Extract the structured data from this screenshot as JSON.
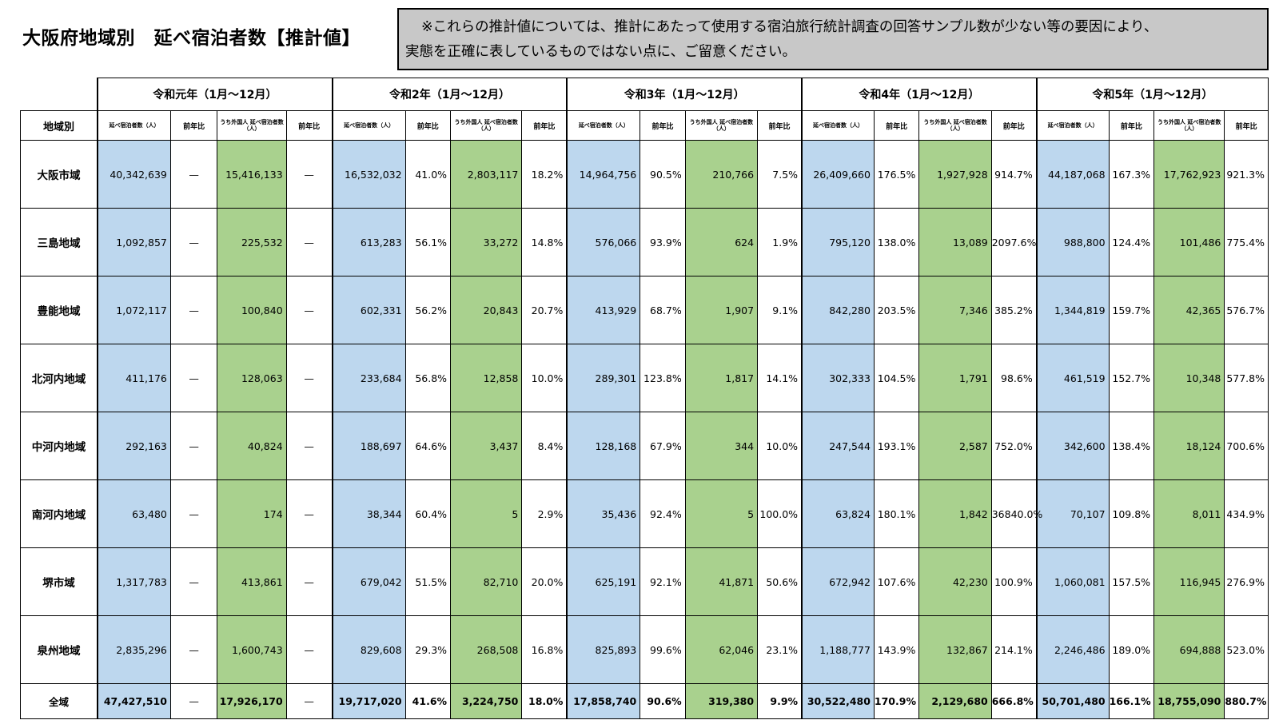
{
  "title": "大阪府地域別　延べ宿泊者数【推計値】",
  "notice": {
    "line1": "※これらの推計値については、推計にあたって使用する宿泊旅行統計調査の回答サンプル数が少ない等の要因により、",
    "line2": "実態を正確に表しているものではない点に、ご留意ください。"
  },
  "colors": {
    "total_stays": "#bdd7ee",
    "foreign_stays": "#a9d18e",
    "notice_bg": "#c8c8c8"
  },
  "table": {
    "region_header": "地域別",
    "col_total": "延べ宿泊者数（人）",
    "col_ratio": "前年比",
    "col_foreign": "うち外国人 延べ宿泊者数（人）",
    "years": [
      "令和元年（1月～12月）",
      "令和2年（1月～12月）",
      "令和3年（1月～12月）",
      "令和4年（1月～12月）",
      "令和5年（1月～12月）"
    ],
    "rows": [
      {
        "region": "大阪市域",
        "cells": [
          "40,342,639",
          "—",
          "15,416,133",
          "—",
          "16,532,032",
          "41.0%",
          "2,803,117",
          "18.2%",
          "14,964,756",
          "90.5%",
          "210,766",
          "7.5%",
          "26,409,660",
          "176.5%",
          "1,927,928",
          "914.7%",
          "44,187,068",
          "167.3%",
          "17,762,923",
          "921.3%"
        ]
      },
      {
        "region": "三島地域",
        "cells": [
          "1,092,857",
          "—",
          "225,532",
          "—",
          "613,283",
          "56.1%",
          "33,272",
          "14.8%",
          "576,066",
          "93.9%",
          "624",
          "1.9%",
          "795,120",
          "138.0%",
          "13,089",
          "2097.6%",
          "988,800",
          "124.4%",
          "101,486",
          "775.4%"
        ]
      },
      {
        "region": "豊能地域",
        "cells": [
          "1,072,117",
          "—",
          "100,840",
          "—",
          "602,331",
          "56.2%",
          "20,843",
          "20.7%",
          "413,929",
          "68.7%",
          "1,907",
          "9.1%",
          "842,280",
          "203.5%",
          "7,346",
          "385.2%",
          "1,344,819",
          "159.7%",
          "42,365",
          "576.7%"
        ]
      },
      {
        "region": "北河内地域",
        "cells": [
          "411,176",
          "—",
          "128,063",
          "—",
          "233,684",
          "56.8%",
          "12,858",
          "10.0%",
          "289,301",
          "123.8%",
          "1,817",
          "14.1%",
          "302,333",
          "104.5%",
          "1,791",
          "98.6%",
          "461,519",
          "152.7%",
          "10,348",
          "577.8%"
        ]
      },
      {
        "region": "中河内地域",
        "cells": [
          "292,163",
          "—",
          "40,824",
          "—",
          "188,697",
          "64.6%",
          "3,437",
          "8.4%",
          "128,168",
          "67.9%",
          "344",
          "10.0%",
          "247,544",
          "193.1%",
          "2,587",
          "752.0%",
          "342,600",
          "138.4%",
          "18,124",
          "700.6%"
        ]
      },
      {
        "region": "南河内地域",
        "cells": [
          "63,480",
          "—",
          "174",
          "—",
          "38,344",
          "60.4%",
          "5",
          "2.9%",
          "35,436",
          "92.4%",
          "5",
          "100.0%",
          "63,824",
          "180.1%",
          "1,842",
          "36840.0%",
          "70,107",
          "109.8%",
          "8,011",
          "434.9%"
        ]
      },
      {
        "region": "堺市域",
        "cells": [
          "1,317,783",
          "—",
          "413,861",
          "—",
          "679,042",
          "51.5%",
          "82,710",
          "20.0%",
          "625,191",
          "92.1%",
          "41,871",
          "50.6%",
          "672,942",
          "107.6%",
          "42,230",
          "100.9%",
          "1,060,081",
          "157.5%",
          "116,945",
          "276.9%"
        ]
      },
      {
        "region": "泉州地域",
        "cells": [
          "2,835,296",
          "—",
          "1,600,743",
          "—",
          "829,608",
          "29.3%",
          "268,508",
          "16.8%",
          "825,893",
          "99.6%",
          "62,046",
          "23.1%",
          "1,188,777",
          "143.9%",
          "132,867",
          "214.1%",
          "2,246,486",
          "189.0%",
          "694,888",
          "523.0%"
        ]
      }
    ],
    "total": {
      "region": "全域",
      "cells": [
        "47,427,510",
        "—",
        "17,926,170",
        "—",
        "19,717,020",
        "41.6%",
        "3,224,750",
        "18.0%",
        "17,858,740",
        "90.6%",
        "319,380",
        "9.9%",
        "30,522,480",
        "170.9%",
        "2,129,680",
        "666.8%",
        "50,701,480",
        "166.1%",
        "18,755,090",
        "880.7%"
      ]
    }
  }
}
